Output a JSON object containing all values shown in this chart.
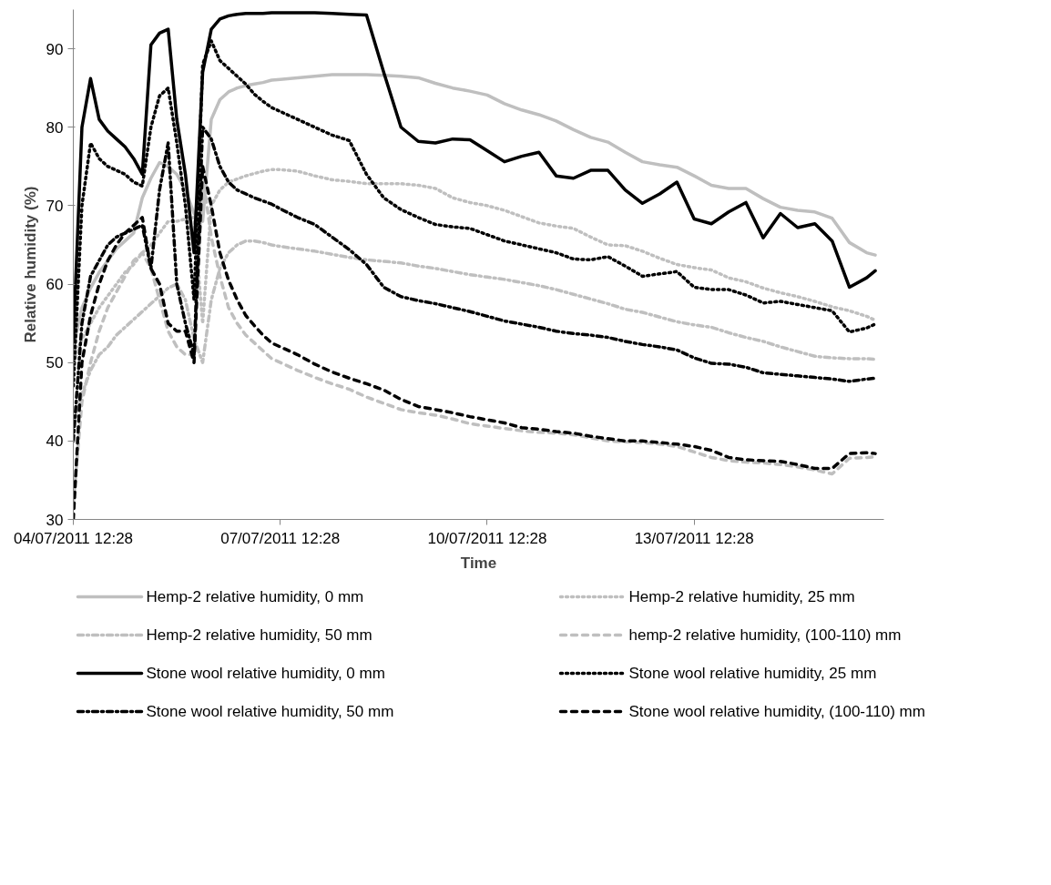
{
  "chart_data": {
    "type": "line",
    "xlabel": "Time",
    "ylabel": "Relative humidity (%)",
    "x": [
      "2011-07-04T12:28",
      "2011-07-04T15:28",
      "2011-07-04T18:28",
      "2011-07-04T21:28",
      "2011-07-05T00:28",
      "2011-07-05T03:28",
      "2011-07-05T06:28",
      "2011-07-05T09:28",
      "2011-07-05T12:28",
      "2011-07-05T15:28",
      "2011-07-05T18:28",
      "2011-07-05T21:28",
      "2011-07-06T00:28",
      "2011-07-06T03:28",
      "2011-07-06T06:28",
      "2011-07-06T09:28",
      "2011-07-06T12:28",
      "2011-07-06T15:28",
      "2011-07-06T18:28",
      "2011-07-06T21:28",
      "2011-07-07T00:28",
      "2011-07-07T03:28",
      "2011-07-07T06:28",
      "2011-07-07T09:28",
      "2011-07-07T12:28",
      "2011-07-07T18:28",
      "2011-07-08T00:28",
      "2011-07-08T06:28",
      "2011-07-08T12:28",
      "2011-07-08T18:28",
      "2011-07-09T00:28",
      "2011-07-09T06:28",
      "2011-07-09T12:28",
      "2011-07-09T18:28",
      "2011-07-10T00:28",
      "2011-07-10T06:28",
      "2011-07-10T12:28",
      "2011-07-10T18:28",
      "2011-07-11T00:28",
      "2011-07-11T06:28",
      "2011-07-11T12:28",
      "2011-07-11T18:28",
      "2011-07-12T00:28",
      "2011-07-12T06:28",
      "2011-07-12T12:28",
      "2011-07-12T18:28",
      "2011-07-13T00:28",
      "2011-07-13T06:28",
      "2011-07-13T12:28",
      "2011-07-13T18:28",
      "2011-07-14T00:28",
      "2011-07-14T06:28",
      "2011-07-14T12:28",
      "2011-07-14T18:28",
      "2011-07-15T00:28",
      "2011-07-15T06:28",
      "2011-07-15T12:28",
      "2011-07-15T18:28",
      "2011-07-16T00:28",
      "2011-07-16T03:28"
    ],
    "series": [
      {
        "name": "Hemp-2 relative humidity, 0 mm",
        "color": "#bfbfbf",
        "line_style": "solid",
        "values": [
          52,
          57,
          59.5,
          61.5,
          63,
          64.5,
          65.5,
          66.5,
          71,
          73.5,
          75.5,
          75,
          74,
          72,
          69,
          68,
          81,
          83.5,
          84.5,
          85,
          85.3,
          85.5,
          85.7,
          86,
          86.1,
          86.3,
          86.5,
          86.7,
          86.7,
          86.7,
          86.6,
          86.5,
          86.3,
          85.6,
          85.0,
          84.6,
          84.1,
          83.0,
          82.2,
          81.6,
          80.8,
          79.7,
          78.7,
          78.1,
          76.8,
          75.6,
          75.2,
          74.9,
          73.8,
          72.6,
          72.2,
          72.2,
          70.9,
          69.8,
          69.4,
          69.2,
          68.4,
          65.3,
          64.0,
          63.7
        ]
      },
      {
        "name": "Hemp-2 relative humidity, 25 mm",
        "color": "#bfbfbf",
        "line_style": "dotted",
        "values": [
          50,
          53,
          55,
          57,
          58.5,
          60,
          61.5,
          62.5,
          64,
          65,
          66.5,
          68,
          68,
          68.3,
          68.5,
          55,
          70,
          72,
          73,
          73.4,
          73.8,
          74.1,
          74.4,
          74.6,
          74.6,
          74.4,
          73.8,
          73.3,
          73.1,
          72.8,
          72.8,
          72.8,
          72.6,
          72.2,
          71.0,
          70.4,
          70.0,
          69.4,
          68.6,
          67.8,
          67.4,
          67.1,
          66.0,
          65.0,
          64.9,
          64.2,
          63.3,
          62.5,
          62.1,
          61.8,
          60.8,
          60.3,
          59.5,
          58.9,
          58.4,
          57.8,
          57.1,
          56.6,
          55.9,
          55.4
        ]
      },
      {
        "name": "Hemp-2 relative humidity, 50 mm",
        "color": "#bfbfbf",
        "line_style": "dashdot",
        "values": [
          42,
          46,
          49,
          51,
          52,
          53.5,
          54.5,
          55.5,
          56.5,
          57.5,
          58.5,
          59.5,
          60,
          58,
          53,
          50,
          58,
          62,
          64,
          65,
          65.5,
          65.5,
          65.3,
          65,
          64.8,
          64.5,
          64.2,
          63.8,
          63.4,
          63.1,
          62.9,
          62.7,
          62.3,
          62.0,
          61.6,
          61.2,
          60.9,
          60.6,
          60.2,
          59.8,
          59.3,
          58.7,
          58.1,
          57.5,
          56.8,
          56.4,
          55.8,
          55.2,
          54.8,
          54.5,
          53.8,
          53.2,
          52.7,
          52.0,
          51.4,
          50.8,
          50.6,
          50.5,
          50.5,
          50.4
        ]
      },
      {
        "name": "hemp-2 relative humidity, (100-110) mm",
        "color": "#bfbfbf",
        "line_style": "dashed",
        "values": [
          32,
          45,
          50,
          54,
          57,
          59,
          61,
          63,
          64,
          62,
          58,
          54,
          52,
          51,
          51,
          74,
          66,
          61,
          57,
          55,
          53.5,
          52.5,
          51.5,
          50.5,
          50,
          49,
          48.1,
          47.3,
          46.6,
          45.6,
          44.8,
          44.0,
          43.6,
          43.3,
          42.8,
          42.2,
          41.9,
          41.6,
          41.3,
          41.1,
          41.0,
          40.8,
          40.4,
          40.0,
          39.9,
          39.8,
          39.6,
          39.3,
          38.6,
          37.9,
          37.5,
          37.3,
          37.2,
          37.0,
          36.7,
          36.3,
          35.8,
          37.8,
          37.9,
          38.0
        ]
      },
      {
        "name": "Stone wool relative humidity, 0 mm",
        "color": "#000000",
        "line_style": "solid",
        "values": [
          53,
          80,
          86.2,
          81,
          79.5,
          78.5,
          77.5,
          76,
          74,
          90.5,
          92,
          92.5,
          81,
          74,
          64,
          87,
          92.5,
          93.8,
          94.2,
          94.4,
          94.5,
          94.5,
          94.5,
          94.6,
          94.6,
          94.6,
          94.6,
          94.5,
          94.4,
          94.3,
          87,
          80,
          78.2,
          78.0,
          78.5,
          78.4,
          77.0,
          75.6,
          76.3,
          76.8,
          73.8,
          73.5,
          74.5,
          74.5,
          72.0,
          70.3,
          71.5,
          73.0,
          68.3,
          67.7,
          69.2,
          70.4,
          65.9,
          69.0,
          67.2,
          67.7,
          65.5,
          59.6,
          60.8,
          61.7
        ]
      },
      {
        "name": "Stone wool relative humidity, 25 mm",
        "color": "#000000",
        "line_style": "dotted",
        "values": [
          47,
          70,
          78,
          76,
          75,
          74.5,
          74,
          73,
          72.5,
          80,
          84,
          85,
          78,
          70,
          58,
          88,
          91,
          88.5,
          87.5,
          86.5,
          85.5,
          84.2,
          83.3,
          82.5,
          82,
          81,
          80,
          79,
          78.3,
          74,
          71,
          69.5,
          68.5,
          67.6,
          67.3,
          67.1,
          66.3,
          65.5,
          65,
          64.5,
          64,
          63.2,
          63.1,
          63.5,
          62.3,
          61.0,
          61.3,
          61.6,
          59.6,
          59.3,
          59.3,
          58.6,
          57.6,
          57.8,
          57.4,
          57.0,
          56.6,
          53.9,
          54.4,
          54.9
        ]
      },
      {
        "name": "Stone wool relative humidity, 50 mm",
        "color": "#000000",
        "line_style": "dashdot",
        "values": [
          40,
          55,
          61,
          63,
          65,
          66,
          66.5,
          67,
          67.5,
          62,
          72,
          78,
          60,
          55,
          51,
          80,
          78.5,
          75,
          73,
          72,
          71.5,
          71,
          70.6,
          70.2,
          69.6,
          68.5,
          67.6,
          66,
          64.4,
          62.5,
          59.6,
          58.4,
          57.9,
          57.5,
          57,
          56.5,
          55.9,
          55.3,
          54.9,
          54.5,
          54,
          53.7,
          53.5,
          53.2,
          52.7,
          52.3,
          52,
          51.6,
          50.6,
          49.9,
          49.8,
          49.4,
          48.7,
          48.5,
          48.3,
          48.1,
          47.9,
          47.6,
          47.9,
          48.0
        ]
      },
      {
        "name": "Stone wool relative humidity, (100-110) mm",
        "color": "#000000",
        "line_style": "dashed",
        "values": [
          30,
          50,
          56,
          60,
          63,
          65,
          66.5,
          67.5,
          68.5,
          62,
          60,
          55,
          54,
          54,
          50,
          75,
          70,
          64,
          60.5,
          58,
          56,
          54.7,
          53.5,
          52.5,
          52,
          51,
          49.8,
          48.8,
          48.0,
          47.3,
          46.5,
          45.3,
          44.4,
          44.0,
          43.6,
          43.1,
          42.7,
          42.3,
          41.7,
          41.5,
          41.2,
          41.0,
          40.6,
          40.3,
          40.0,
          40.0,
          39.8,
          39.6,
          39.3,
          38.8,
          37.9,
          37.6,
          37.5,
          37.4,
          37.0,
          36.5,
          36.5,
          38.4,
          38.5,
          38.4
        ]
      }
    ],
    "xlim": [
      "2011-07-04T12:28",
      "2011-07-16T06:28"
    ],
    "xticks": [
      {
        "value": "2011-07-04T12:28",
        "label": "04/07/2011 12:28"
      },
      {
        "value": "2011-07-07T12:28",
        "label": "07/07/2011 12:28"
      },
      {
        "value": "2011-07-10T12:28",
        "label": "10/07/2011 12:28"
      },
      {
        "value": "2011-07-13T12:28",
        "label": "13/07/2011 12:28"
      }
    ],
    "ylim": [
      30,
      95
    ],
    "yticks": [
      30,
      40,
      50,
      60,
      70,
      80,
      90
    ],
    "grid": false,
    "legend": "bottom",
    "marker": "none"
  }
}
